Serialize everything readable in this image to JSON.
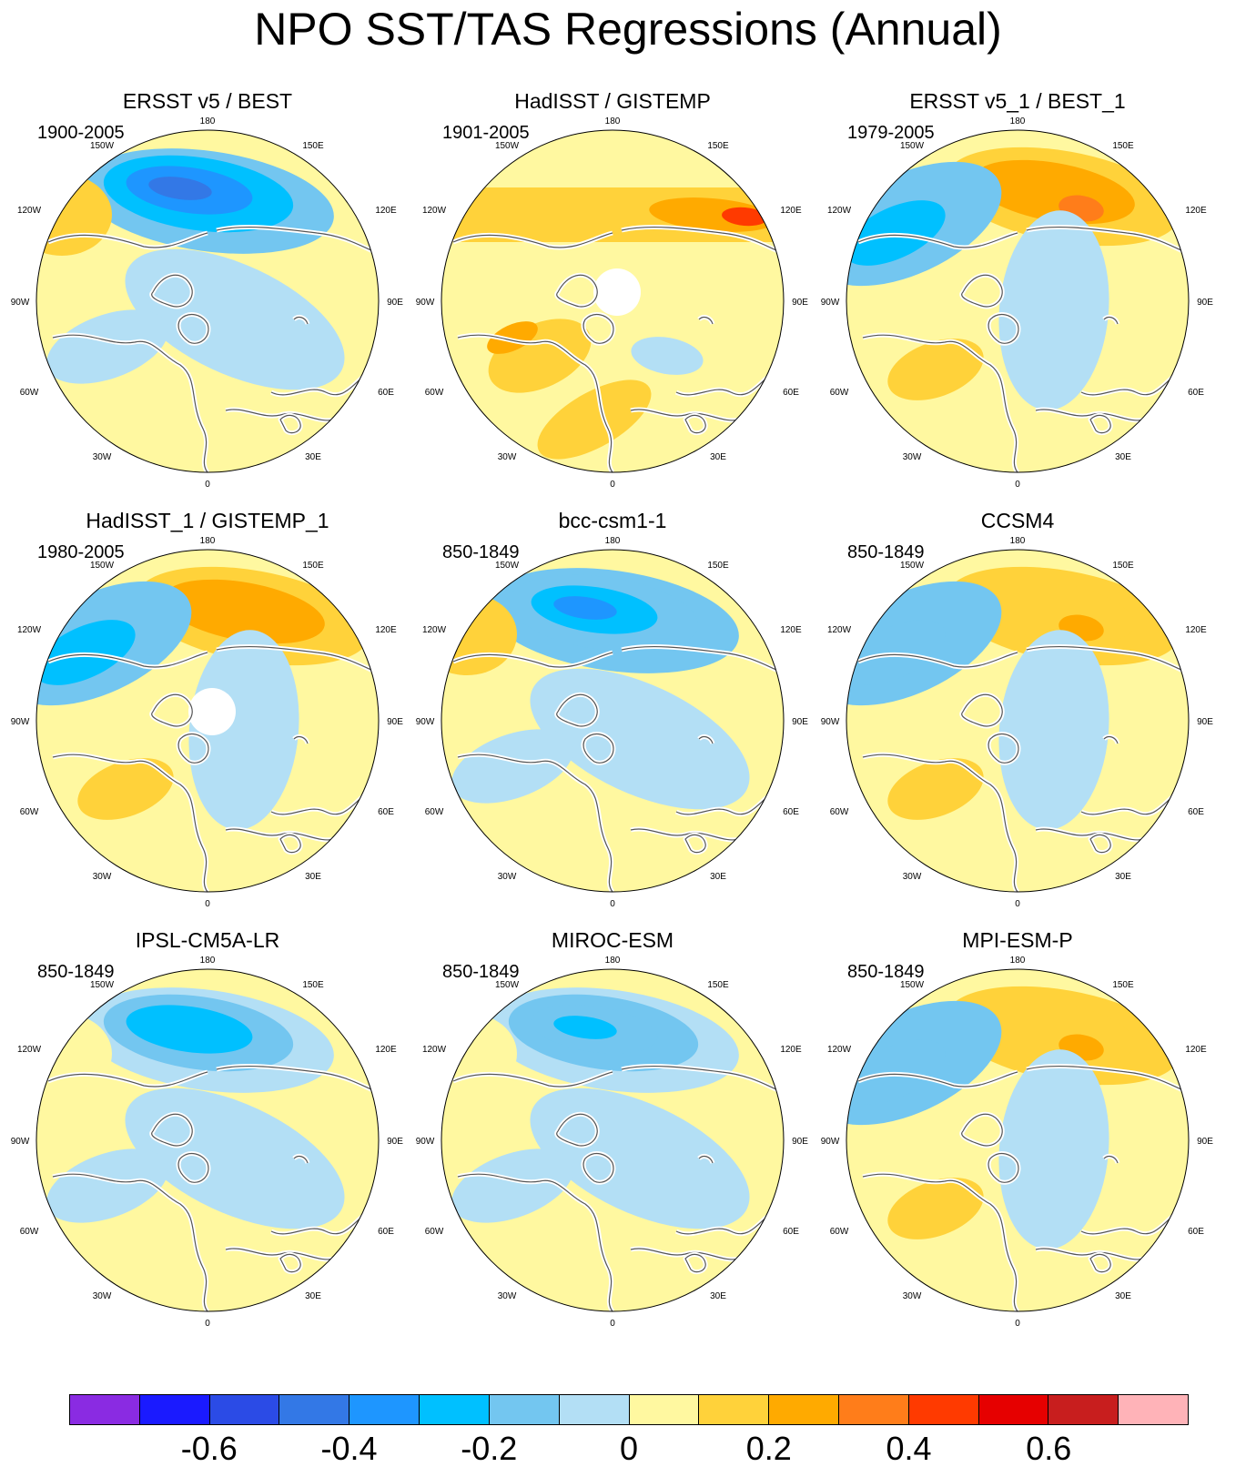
{
  "title": "NPO SST/TAS Regressions (Annual)",
  "lon_labels": {
    "top": "180",
    "bottom": "0",
    "upper_left": "150W",
    "upper_right": "150E",
    "mid_upper_left": "120W",
    "mid_upper_right": "120E",
    "left": "90W",
    "right": "90E",
    "mid_lower_left": "60W",
    "mid_lower_right": "60E",
    "lower_left": "30W",
    "lower_right": "30E"
  },
  "panels": [
    {
      "title": "ERSST v5 / BEST",
      "period": "1900-2005",
      "pattern": "neg",
      "amp": 1.0,
      "missing_pole": false
    },
    {
      "title": "HadISST / GISTEMP",
      "period": "1901-2005",
      "pattern": "warm",
      "amp": 1.0,
      "missing_pole": true
    },
    {
      "title": "ERSST v5_1 / BEST_1",
      "period": "1979-2005",
      "pattern": "pos",
      "amp": 1.0,
      "missing_pole": false
    },
    {
      "title": "HadISST_1 / GISTEMP_1",
      "period": "1980-2005",
      "pattern": "pos",
      "amp": 0.85,
      "missing_pole": true
    },
    {
      "title": "bcc-csm1-1",
      "period": "850-1849",
      "pattern": "neg",
      "amp": 0.75,
      "missing_pole": false
    },
    {
      "title": "CCSM4",
      "period": "850-1849",
      "pattern": "pos",
      "amp": 0.75,
      "missing_pole": false
    },
    {
      "title": "IPSL-CM5A-LR",
      "period": "850-1849",
      "pattern": "neg",
      "amp": 0.6,
      "missing_pole": false
    },
    {
      "title": "MIROC-ESM",
      "period": "850-1849",
      "pattern": "neg",
      "amp": 0.5,
      "missing_pole": false
    },
    {
      "title": "MPI-ESM-P",
      "period": "850-1849",
      "pattern": "pos",
      "amp": 0.7,
      "missing_pole": false
    }
  ],
  "colorbar": {
    "colors": [
      "#8a2be2",
      "#1a1aff",
      "#2b4be6",
      "#3378e6",
      "#1e96ff",
      "#00c0ff",
      "#73c6f0",
      "#b3dff5",
      "#fff8a0",
      "#ffd23a",
      "#ffaa00",
      "#ff7d1a",
      "#ff3a00",
      "#e60000",
      "#c81e1e",
      "#ffb3b8"
    ],
    "labels": [
      "-0.6",
      "-0.4",
      "-0.2",
      "0",
      "0.2",
      "0.4",
      "0.6"
    ],
    "label_values": [
      -0.6,
      -0.4,
      -0.2,
      0,
      0.2,
      0.4,
      0.6
    ],
    "min": -0.8,
    "max": 0.8
  }
}
